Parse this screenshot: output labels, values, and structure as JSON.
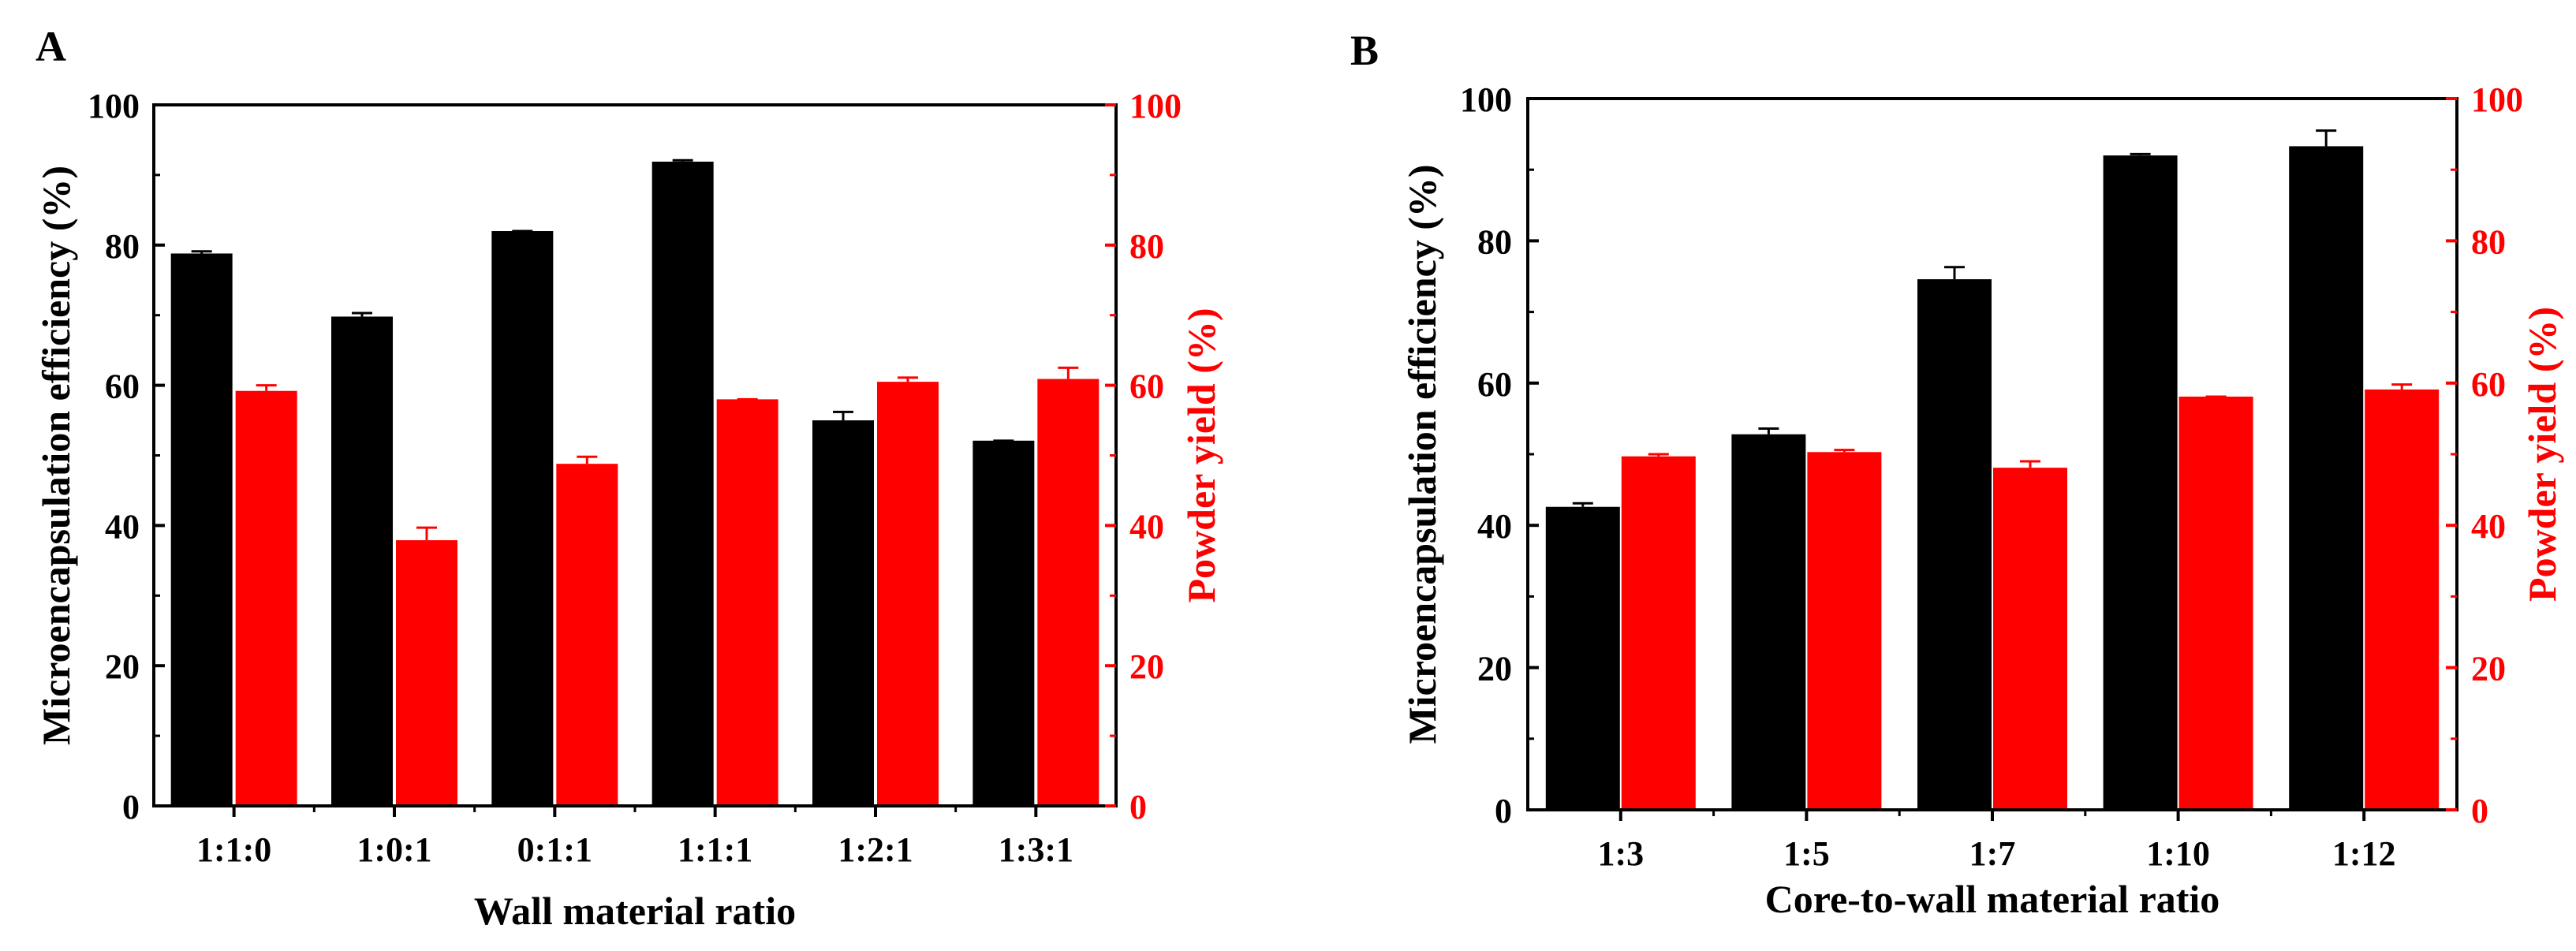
{
  "colors": {
    "efficiency": "#000000",
    "yield": "#ff0000",
    "axis": "#000000"
  },
  "panels": [
    {
      "label": "A"
    },
    {
      "label": "B"
    }
  ],
  "chart_data": [
    {
      "panel": "A",
      "type": "bar",
      "xlabel": "Wall material ratio",
      "ylabel_left": "Microencapsulation efficiency (%)",
      "ylabel_right": "Powder yield (%)",
      "ylim": [
        0,
        100
      ],
      "yticks": [
        "0",
        "20",
        "40",
        "60",
        "80",
        "100"
      ],
      "categories": [
        "1:1:0",
        "1:0:1",
        "0:1:1",
        "1:1:1",
        "1:2:1",
        "1:3:1"
      ],
      "series": [
        {
          "axis": "left",
          "values": [
            78.8,
            69.8,
            82.0,
            91.9,
            55.0,
            52.1
          ],
          "errors": [
            0.3,
            0.5,
            0.0,
            0.2,
            1.2,
            0.0
          ]
        },
        {
          "axis": "right",
          "values": [
            59.2,
            37.9,
            48.8,
            58.0,
            60.5,
            60.9
          ],
          "errors": [
            0.8,
            1.8,
            1.0,
            0.0,
            0.6,
            1.6
          ]
        }
      ]
    },
    {
      "panel": "B",
      "type": "bar",
      "xlabel": "Core-to-wall material ratio",
      "ylabel_left": "Microencapsulation efficiency (%)",
      "ylabel_right": "Powder yield (%)",
      "ylim": [
        0,
        100
      ],
      "yticks": [
        "0",
        "20",
        "40",
        "60",
        "80",
        "100"
      ],
      "categories": [
        "1:3",
        "1:5",
        "1:7",
        "1:10",
        "1:12"
      ],
      "series": [
        {
          "axis": "left",
          "values": [
            42.6,
            52.8,
            74.6,
            92.0,
            93.3
          ],
          "errors": [
            0.5,
            0.8,
            1.7,
            0.2,
            2.2
          ]
        },
        {
          "axis": "right",
          "values": [
            49.7,
            50.3,
            48.1,
            58.1,
            59.1
          ],
          "errors": [
            0.3,
            0.3,
            0.9,
            0.0,
            0.7
          ]
        }
      ]
    }
  ]
}
